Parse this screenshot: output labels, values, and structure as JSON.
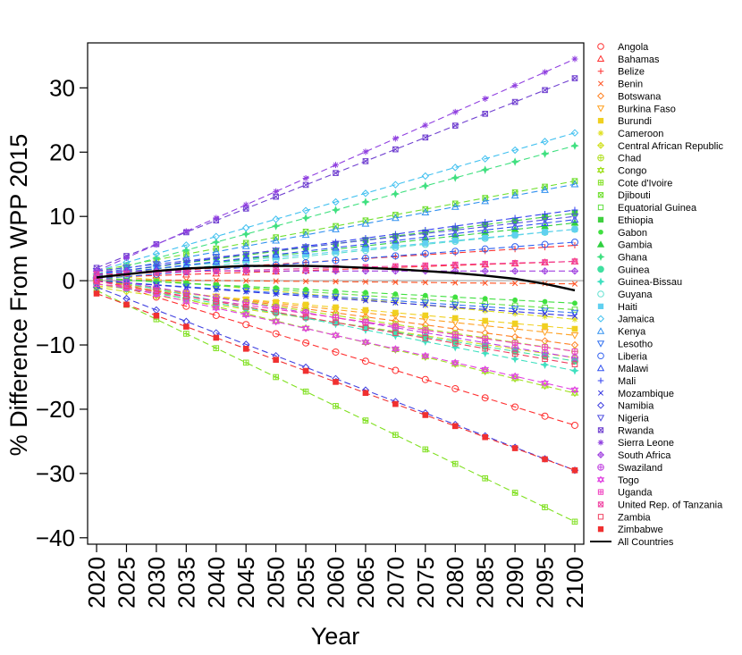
{
  "chart_data": {
    "type": "line",
    "title": "",
    "xlabel": "Year",
    "ylabel": "% Difference From WPP 2015",
    "x": [
      2020,
      2025,
      2030,
      2035,
      2040,
      2045,
      2050,
      2055,
      2060,
      2065,
      2070,
      2075,
      2080,
      2085,
      2090,
      2095,
      2100
    ],
    "xticks": [
      "2020",
      "2025",
      "2030",
      "2035",
      "2040",
      "2045",
      "2050",
      "2055",
      "2060",
      "2065",
      "2070",
      "2075",
      "2080",
      "2085",
      "2090",
      "2095",
      "2100"
    ],
    "xlim": [
      2018.5,
      2101.5
    ],
    "ylim": [
      -41,
      37
    ],
    "yticks": [
      -40,
      -30,
      -20,
      -10,
      0,
      10,
      20,
      30
    ],
    "ytick_labels": [
      "−40",
      "−30",
      "−20",
      "−10",
      "0",
      "10",
      "20",
      "30"
    ],
    "reference_line": {
      "y": 0,
      "color": "#c8c8c8"
    },
    "legend_position": "right-outside",
    "series": [
      {
        "name": "Angola",
        "color": "#ff3030",
        "marker": "circle",
        "start": 0.3,
        "end": -22.5
      },
      {
        "name": "Bahamas",
        "color": "#ff3030",
        "marker": "triangle",
        "start": 0.5,
        "end": 3.0
      },
      {
        "name": "Belize",
        "color": "#ff3030",
        "marker": "plus",
        "start": 0.8,
        "end": 5.5
      },
      {
        "name": "Benin",
        "color": "#ff5020",
        "marker": "cross",
        "start": 0.2,
        "end": -0.5
      },
      {
        "name": "Botswana",
        "color": "#ff8020",
        "marker": "diamond",
        "start": 0.0,
        "end": -10.0
      },
      {
        "name": "Burkina Faso",
        "color": "#ffa020",
        "marker": "triangle-down",
        "start": -0.5,
        "end": -8.5
      },
      {
        "name": "Burundi",
        "color": "#f0d020",
        "marker": "square",
        "start": -0.8,
        "end": -7.5
      },
      {
        "name": "Cameroon",
        "color": "#e0e020",
        "marker": "asterisk",
        "start": 1.0,
        "end": -6.0
      },
      {
        "name": "Central African Republic",
        "color": "#d0e020",
        "marker": "diamond-plus",
        "start": -1.0,
        "end": -12.0
      },
      {
        "name": "Chad",
        "color": "#b0e020",
        "marker": "circle-plus",
        "start": 0.2,
        "end": -11.0
      },
      {
        "name": "Congo",
        "color": "#a0e020",
        "marker": "star-of-david",
        "start": 0.5,
        "end": -17.5
      },
      {
        "name": "Cote d'Ivoire",
        "color": "#80e020",
        "marker": "square-plus",
        "start": -1.5,
        "end": -37.5
      },
      {
        "name": "Djibouti",
        "color": "#70e030",
        "marker": "square-cross",
        "start": 1.5,
        "end": 15.5
      },
      {
        "name": "Equatorial Guinea",
        "color": "#60e040",
        "marker": "square-open",
        "start": 0.5,
        "end": -4.5
      },
      {
        "name": "Ethiopia",
        "color": "#40d040",
        "marker": "square",
        "start": 1.0,
        "end": 10.5
      },
      {
        "name": "Gabon",
        "color": "#40e040",
        "marker": "dot",
        "start": 0.3,
        "end": -3.5
      },
      {
        "name": "Gambia",
        "color": "#30d040",
        "marker": "triangle-filled",
        "start": 0.8,
        "end": 9.0
      },
      {
        "name": "Ghana",
        "color": "#40e080",
        "marker": "star-small",
        "start": 1.0,
        "end": 21.0
      },
      {
        "name": "Guinea",
        "color": "#40e0a0",
        "marker": "circle-filled",
        "start": -0.5,
        "end": -12.5
      },
      {
        "name": "Guinea-Bissau",
        "color": "#40e0c0",
        "marker": "star-small",
        "start": 0.5,
        "end": -14.0
      },
      {
        "name": "Guyana",
        "color": "#60e0d0",
        "marker": "circle",
        "start": 0.5,
        "end": 8.0
      },
      {
        "name": "Haiti",
        "color": "#60d0f0",
        "marker": "square",
        "start": 1.0,
        "end": 8.0
      },
      {
        "name": "Jamaica",
        "color": "#40c0f0",
        "marker": "diamond",
        "start": 1.5,
        "end": 23.0
      },
      {
        "name": "Kenya",
        "color": "#3090f0",
        "marker": "triangle",
        "start": 1.0,
        "end": 15.0
      },
      {
        "name": "Lesotho",
        "color": "#3070f0",
        "marker": "triangle-down",
        "start": 0.0,
        "end": -5.0
      },
      {
        "name": "Liberia",
        "color": "#3060f0",
        "marker": "circle",
        "start": 0.3,
        "end": 6.0
      },
      {
        "name": "Malawi",
        "color": "#3050f0",
        "marker": "triangle",
        "start": 0.8,
        "end": 9.5
      },
      {
        "name": "Mali",
        "color": "#3040f0",
        "marker": "plus",
        "start": 1.0,
        "end": 11.0
      },
      {
        "name": "Mozambique",
        "color": "#3030e0",
        "marker": "cross",
        "start": 0.0,
        "end": -5.5
      },
      {
        "name": "Namibia",
        "color": "#4040e0",
        "marker": "diamond",
        "start": -1.0,
        "end": -29.5
      },
      {
        "name": "Nigeria",
        "color": "#5050e0",
        "marker": "triangle-down",
        "start": 1.5,
        "end": 10.0
      },
      {
        "name": "Rwanda",
        "color": "#7040d0",
        "marker": "square-cross",
        "start": 2.0,
        "end": 31.5
      },
      {
        "name": "Sierra Leone",
        "color": "#9040e0",
        "marker": "asterisk",
        "start": 1.5,
        "end": 34.5
      },
      {
        "name": "South Africa",
        "color": "#a040e0",
        "marker": "diamond-plus",
        "start": 1.5,
        "end": 1.5
      },
      {
        "name": "Swaziland",
        "color": "#c040e0",
        "marker": "circle-plus",
        "start": 0.5,
        "end": -12.0
      },
      {
        "name": "Togo",
        "color": "#e040e0",
        "marker": "star-of-david",
        "start": 0.0,
        "end": -17.0
      },
      {
        "name": "Uganda",
        "color": "#f040c0",
        "marker": "square-plus",
        "start": -0.5,
        "end": -11.0
      },
      {
        "name": "United Rep. of Tanzania",
        "color": "#f040a0",
        "marker": "square-cross",
        "start": 1.0,
        "end": 3.0
      },
      {
        "name": "Zambia",
        "color": "#f04060",
        "marker": "square-open",
        "start": 0.0,
        "end": -13.0
      },
      {
        "name": "Zimbabwe",
        "color": "#f03030",
        "marker": "square",
        "start": -2.0,
        "end": -29.5
      }
    ],
    "all_countries": {
      "name": "All Countries",
      "color": "#000000",
      "values": [
        0.5,
        1.0,
        1.5,
        1.9,
        2.1,
        2.3,
        2.3,
        2.3,
        2.2,
        2.0,
        1.8,
        1.5,
        1.2,
        0.8,
        0.3,
        -0.5,
        -1.5
      ]
    }
  }
}
